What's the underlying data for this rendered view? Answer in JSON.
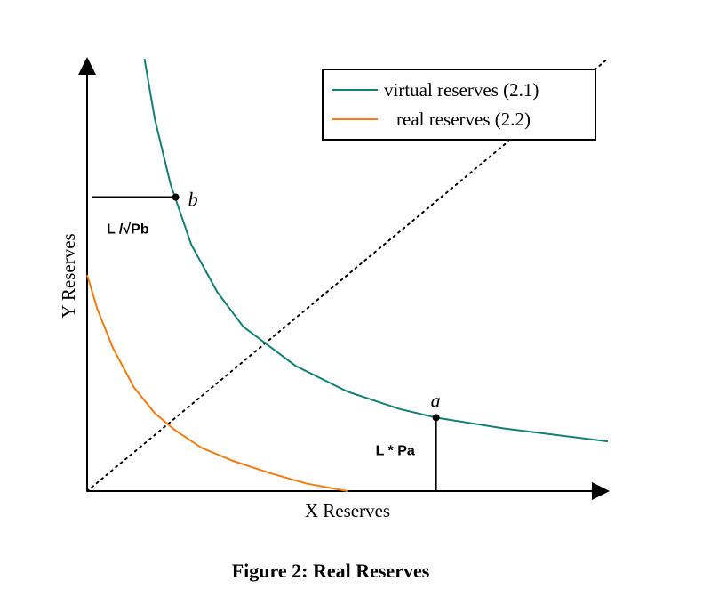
{
  "chart_data": {
    "type": "line",
    "title": "",
    "xlabel": "X Reserves",
    "ylabel": "Y Reserves",
    "xlim": [
      0,
      10
    ],
    "ylim": [
      0,
      10
    ],
    "grid": false,
    "legend_position": "top-right",
    "series": [
      {
        "name": "virtual reserves (2.1)",
        "color": "#137f77",
        "x": [
          1.1,
          1.3,
          1.6,
          2.0,
          2.5,
          3.0,
          4.0,
          5.0,
          6.0,
          6.7,
          8.0,
          10.0
        ],
        "y": [
          10.0,
          8.6,
          7.1,
          5.7,
          4.6,
          3.8,
          2.9,
          2.3,
          1.9,
          1.7,
          1.45,
          1.15
        ]
      },
      {
        "name": "real reserves (2.2)",
        "color": "#f07c12",
        "x": [
          0.0,
          0.2,
          0.5,
          0.9,
          1.3,
          1.7,
          2.2,
          2.8,
          3.5,
          4.2,
          5.0
        ],
        "y": [
          5.0,
          4.2,
          3.3,
          2.4,
          1.8,
          1.4,
          1.0,
          0.7,
          0.42,
          0.18,
          0.0
        ]
      },
      {
        "name": "",
        "color": "#000000",
        "style": "dotted",
        "x": [
          0.0,
          10.0
        ],
        "y": [
          0.0,
          10.0
        ]
      }
    ],
    "points": [
      {
        "label": "b",
        "x": 1.7,
        "y": 6.8,
        "projection": "y-axis",
        "annotation": "L /√Pb"
      },
      {
        "label": "a",
        "x": 6.7,
        "y": 1.7,
        "projection": "x-axis",
        "annotation": "L * Pa"
      }
    ]
  },
  "caption": "Figure 2: Real Reserves"
}
